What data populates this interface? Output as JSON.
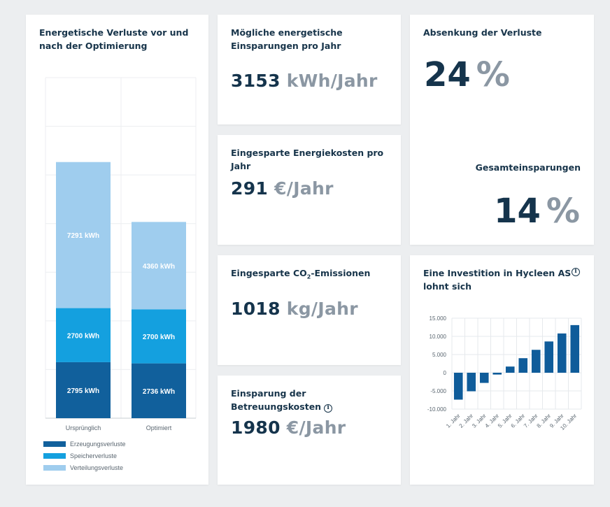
{
  "colors": {
    "erzeugung": "#11609c",
    "speicher": "#14a0df",
    "verteilung": "#9fcdee",
    "invest_bar": "#0f5c9a"
  },
  "loss_card": {
    "title": "Energetische Verluste vor und nach der Optimierung"
  },
  "savings_card": {
    "title": "Mögliche energetische Einsparungen pro Jahr",
    "value": "3153",
    "unit": "kWh/Jahr"
  },
  "cost_card": {
    "title": "Eingesparte Energiekosten pro Jahr",
    "value": "291",
    "unit": "€/Jahr"
  },
  "co2_card": {
    "title_prefix": "Eingesparte CO",
    "title_sub": "2",
    "title_suffix": "-Emissionen",
    "value": "1018",
    "unit": "kg/Jahr"
  },
  "care_card": {
    "title": "Einsparung der Betreuungskosten",
    "value": "1980",
    "unit": "€/Jahr"
  },
  "reduction_card": {
    "title": "Absenkung der Verluste",
    "value": "24",
    "unit": "%",
    "total_title": "Gesamteinsparungen",
    "total_value": "14",
    "total_unit": "%"
  },
  "invest_card": {
    "title": "Eine Investition in Hycleen AS lohnt sich"
  },
  "chart_data": [
    {
      "type": "bar",
      "stacked": true,
      "title": "Energetische Verluste vor und nach der Optimierung",
      "categories": [
        "Ursprünglich",
        "Optimiert"
      ],
      "series": [
        {
          "name": "Erzeugungsverluste",
          "values": [
            2795,
            2736
          ],
          "labels": [
            "2795 kWh",
            "2736 kWh"
          ]
        },
        {
          "name": "Speicherverluste",
          "values": [
            2700,
            2700
          ],
          "labels": [
            "2700 kWh",
            "2700 kWh"
          ]
        },
        {
          "name": "Verteilungsverluste",
          "values": [
            7291,
            4360
          ],
          "labels": [
            "7291 kWh",
            "4360 kWh"
          ]
        }
      ],
      "ylim": [
        0,
        17000
      ],
      "grid": true,
      "legend": "bottom-left"
    },
    {
      "type": "bar",
      "title": "Eine Investition in Hycleen AS lohnt sich",
      "categories": [
        "1. Jahr",
        "2. Jahr",
        "3. Jahr",
        "4. Jahr",
        "5. Jahr",
        "6. Jahr",
        "7. Jahr",
        "8. Jahr",
        "9. Jahr",
        "10. Jahr"
      ],
      "values": [
        -7400,
        -5100,
        -2800,
        -500,
        1700,
        4000,
        6300,
        8600,
        10800,
        13100
      ],
      "yticks": [
        15000,
        10000,
        5000,
        0,
        -5000,
        -10000
      ],
      "ytick_labels": [
        "15.000",
        "10.000",
        "5.000",
        "0",
        "-5.000",
        "-10.000"
      ],
      "ylim": [
        -10000,
        15000
      ],
      "grid": true
    }
  ]
}
